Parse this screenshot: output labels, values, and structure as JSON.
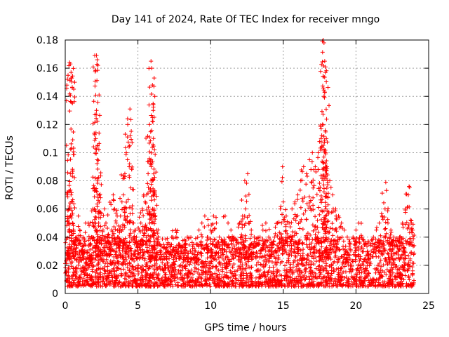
{
  "chart_data": {
    "type": "scatter",
    "title": "Day 141 of 2024, Rate Of TEC Index for receiver mngo",
    "xlabel": "GPS time / hours",
    "ylabel": "ROTI / TECUs",
    "xlim": [
      0,
      25
    ],
    "ylim": [
      0,
      0.18
    ],
    "xticks": [
      0,
      5,
      10,
      15,
      20,
      25
    ],
    "xtick_labels": [
      "0",
      "5",
      "10",
      "15",
      "20",
      "25"
    ],
    "yticks": [
      0,
      0.02,
      0.04,
      0.06,
      0.08,
      0.1,
      0.12,
      0.14,
      0.16,
      0.18
    ],
    "ytick_labels": [
      "0",
      "0.02",
      "0.04",
      "0.06",
      "0.08",
      "0.1",
      "0.12",
      "0.14",
      "0.16",
      "0.18"
    ],
    "grid": true,
    "marker": "+",
    "color": "#ff0000",
    "series": [
      {
        "name": "ROTI",
        "x": [
          0.05,
          0.15,
          0.25,
          0.3,
          0.35,
          0.4,
          0.5,
          0.6,
          0.7,
          0.8,
          0.9,
          1.0,
          1.1,
          1.2,
          1.3,
          1.4,
          1.5,
          1.6,
          1.7,
          1.8,
          1.9,
          2.0,
          2.1,
          2.15,
          2.2,
          2.25,
          2.3,
          2.4,
          2.5,
          2.6,
          2.7,
          2.8,
          2.9,
          3.0,
          3.1,
          3.2,
          3.3,
          3.4,
          3.5,
          3.6,
          3.7,
          3.8,
          3.9,
          4.0,
          4.1,
          4.2,
          4.3,
          4.4,
          4.5,
          4.6,
          4.7,
          4.8,
          4.9,
          5.0,
          5.1,
          5.2,
          5.3,
          5.4,
          5.5,
          5.6,
          5.7,
          5.8,
          5.9,
          6.0,
          6.1,
          6.2,
          6.3,
          6.4,
          6.5,
          6.6,
          6.8,
          7.0,
          7.2,
          7.4,
          7.6,
          7.8,
          8.0,
          8.2,
          8.4,
          8.6,
          8.8,
          9.0,
          9.2,
          9.4,
          9.6,
          9.8,
          10.0,
          10.2,
          10.4,
          10.6,
          10.8,
          11.0,
          11.2,
          11.4,
          11.6,
          11.8,
          12.0,
          12.2,
          12.4,
          12.6,
          12.8,
          13.0,
          13.2,
          13.4,
          13.6,
          13.8,
          14.0,
          14.2,
          14.4,
          14.6,
          14.8,
          15.0,
          15.2,
          15.4,
          15.6,
          15.8,
          16.0,
          16.2,
          16.4,
          16.6,
          16.8,
          17.0,
          17.2,
          17.4,
          17.6,
          17.7,
          17.8,
          17.9,
          18.0,
          18.2,
          18.4,
          18.6,
          18.8,
          19.0,
          19.2,
          19.4,
          19.6,
          19.8,
          20.0,
          20.2,
          20.4,
          20.6,
          20.8,
          21.0,
          21.2,
          21.4,
          21.6,
          21.8,
          22.0,
          22.2,
          22.4,
          22.6,
          22.8,
          23.0,
          23.2,
          23.4,
          23.6,
          23.8,
          23.9,
          0.3,
          0.35,
          0.4,
          0.45,
          2.15,
          2.2,
          2.25,
          4.45,
          5.9,
          5.95,
          6.0,
          6.05,
          17.75,
          17.8,
          17.85,
          17.9,
          12.55,
          12.35,
          14.95,
          22.05,
          23.65
        ],
        "y": [
          0.015,
          0.028,
          0.045,
          0.06,
          0.085,
          0.07,
          0.05,
          0.035,
          0.03,
          0.04,
          0.055,
          0.045,
          0.03,
          0.025,
          0.035,
          0.05,
          0.03,
          0.02,
          0.025,
          0.04,
          0.06,
          0.075,
          0.11,
          0.13,
          0.095,
          0.07,
          0.05,
          0.04,
          0.035,
          0.045,
          0.06,
          0.05,
          0.04,
          0.035,
          0.03,
          0.045,
          0.07,
          0.06,
          0.05,
          0.04,
          0.045,
          0.055,
          0.065,
          0.07,
          0.085,
          0.1,
          0.12,
          0.09,
          0.075,
          0.06,
          0.05,
          0.045,
          0.04,
          0.035,
          0.045,
          0.05,
          0.06,
          0.07,
          0.065,
          0.07,
          0.085,
          0.12,
          0.095,
          0.08,
          0.07,
          0.055,
          0.045,
          0.04,
          0.035,
          0.03,
          0.028,
          0.03,
          0.035,
          0.04,
          0.045,
          0.035,
          0.03,
          0.035,
          0.04,
          0.03,
          0.025,
          0.035,
          0.045,
          0.05,
          0.055,
          0.04,
          0.045,
          0.055,
          0.05,
          0.04,
          0.035,
          0.055,
          0.05,
          0.045,
          0.04,
          0.035,
          0.05,
          0.055,
          0.06,
          0.05,
          0.045,
          0.04,
          0.035,
          0.04,
          0.045,
          0.05,
          0.04,
          0.035,
          0.04,
          0.05,
          0.06,
          0.065,
          0.055,
          0.05,
          0.06,
          0.065,
          0.07,
          0.08,
          0.09,
          0.085,
          0.095,
          0.1,
          0.09,
          0.1,
          0.11,
          0.12,
          0.14,
          0.1,
          0.09,
          0.08,
          0.07,
          0.06,
          0.055,
          0.05,
          0.045,
          0.04,
          0.035,
          0.04,
          0.045,
          0.05,
          0.04,
          0.035,
          0.03,
          0.035,
          0.04,
          0.045,
          0.05,
          0.055,
          0.06,
          0.05,
          0.045,
          0.04,
          0.035,
          0.04,
          0.05,
          0.06,
          0.07,
          0.05,
          0.045,
          0.164,
          0.163,
          0.157,
          0.153,
          0.169,
          0.166,
          0.162,
          0.131,
          0.165,
          0.16,
          0.148,
          0.13,
          0.18,
          0.178,
          0.165,
          0.157,
          0.085,
          0.08,
          0.09,
          0.079,
          0.076
        ]
      }
    ],
    "background_band": {
      "description": "dense cluster of points between 0.005 and 0.04 across all hours",
      "ymin": 0.005,
      "ymax": 0.04,
      "xmin": 0,
      "xmax": 24
    }
  }
}
